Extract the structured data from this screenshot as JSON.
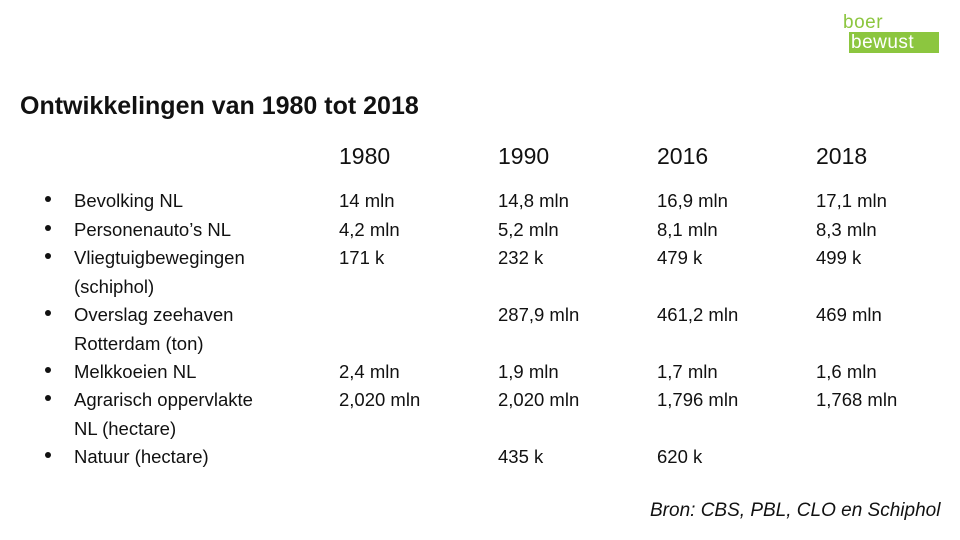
{
  "logo": {
    "line1": "boer",
    "line2": "bewust",
    "color": "#8cc63f"
  },
  "title": "Ontwikkelingen van 1980 tot 2018",
  "years": [
    "1980",
    "1990",
    "2016",
    "2018"
  ],
  "rows": [
    {
      "label": "Bevolking NL",
      "values": [
        "14 mln",
        "14,8 mln",
        "16,9 mln",
        "17,1 mln"
      ]
    },
    {
      "label": "Personenauto’s NL",
      "values": [
        "4,2 mln",
        "5,2 mln",
        "8,1 mln",
        "8,3 mln"
      ]
    },
    {
      "label": "Vliegtuigbewegingen (schiphol)",
      "values": [
        "171 k",
        "232 k",
        "479 k",
        "499 k"
      ]
    },
    {
      "label": "Overslag zeehaven Rotterdam (ton)",
      "values": [
        "",
        "287,9 mln",
        "461,2 mln",
        "469 mln"
      ]
    },
    {
      "label": "Melkkoeien NL",
      "values": [
        "2,4 mln",
        "1,9 mln",
        "1,7 mln",
        "1,6 mln"
      ]
    },
    {
      "label": "Agrarisch oppervlakte NL (hectare)",
      "values": [
        "2,020 mln",
        "2,020 mln",
        "1,796 mln",
        "1,768 mln"
      ]
    },
    {
      "label": "Natuur (hectare)",
      "values": [
        "",
        "435 k",
        "620 k",
        ""
      ]
    }
  ],
  "source": "Bron: CBS, PBL, CLO en Schiphol"
}
